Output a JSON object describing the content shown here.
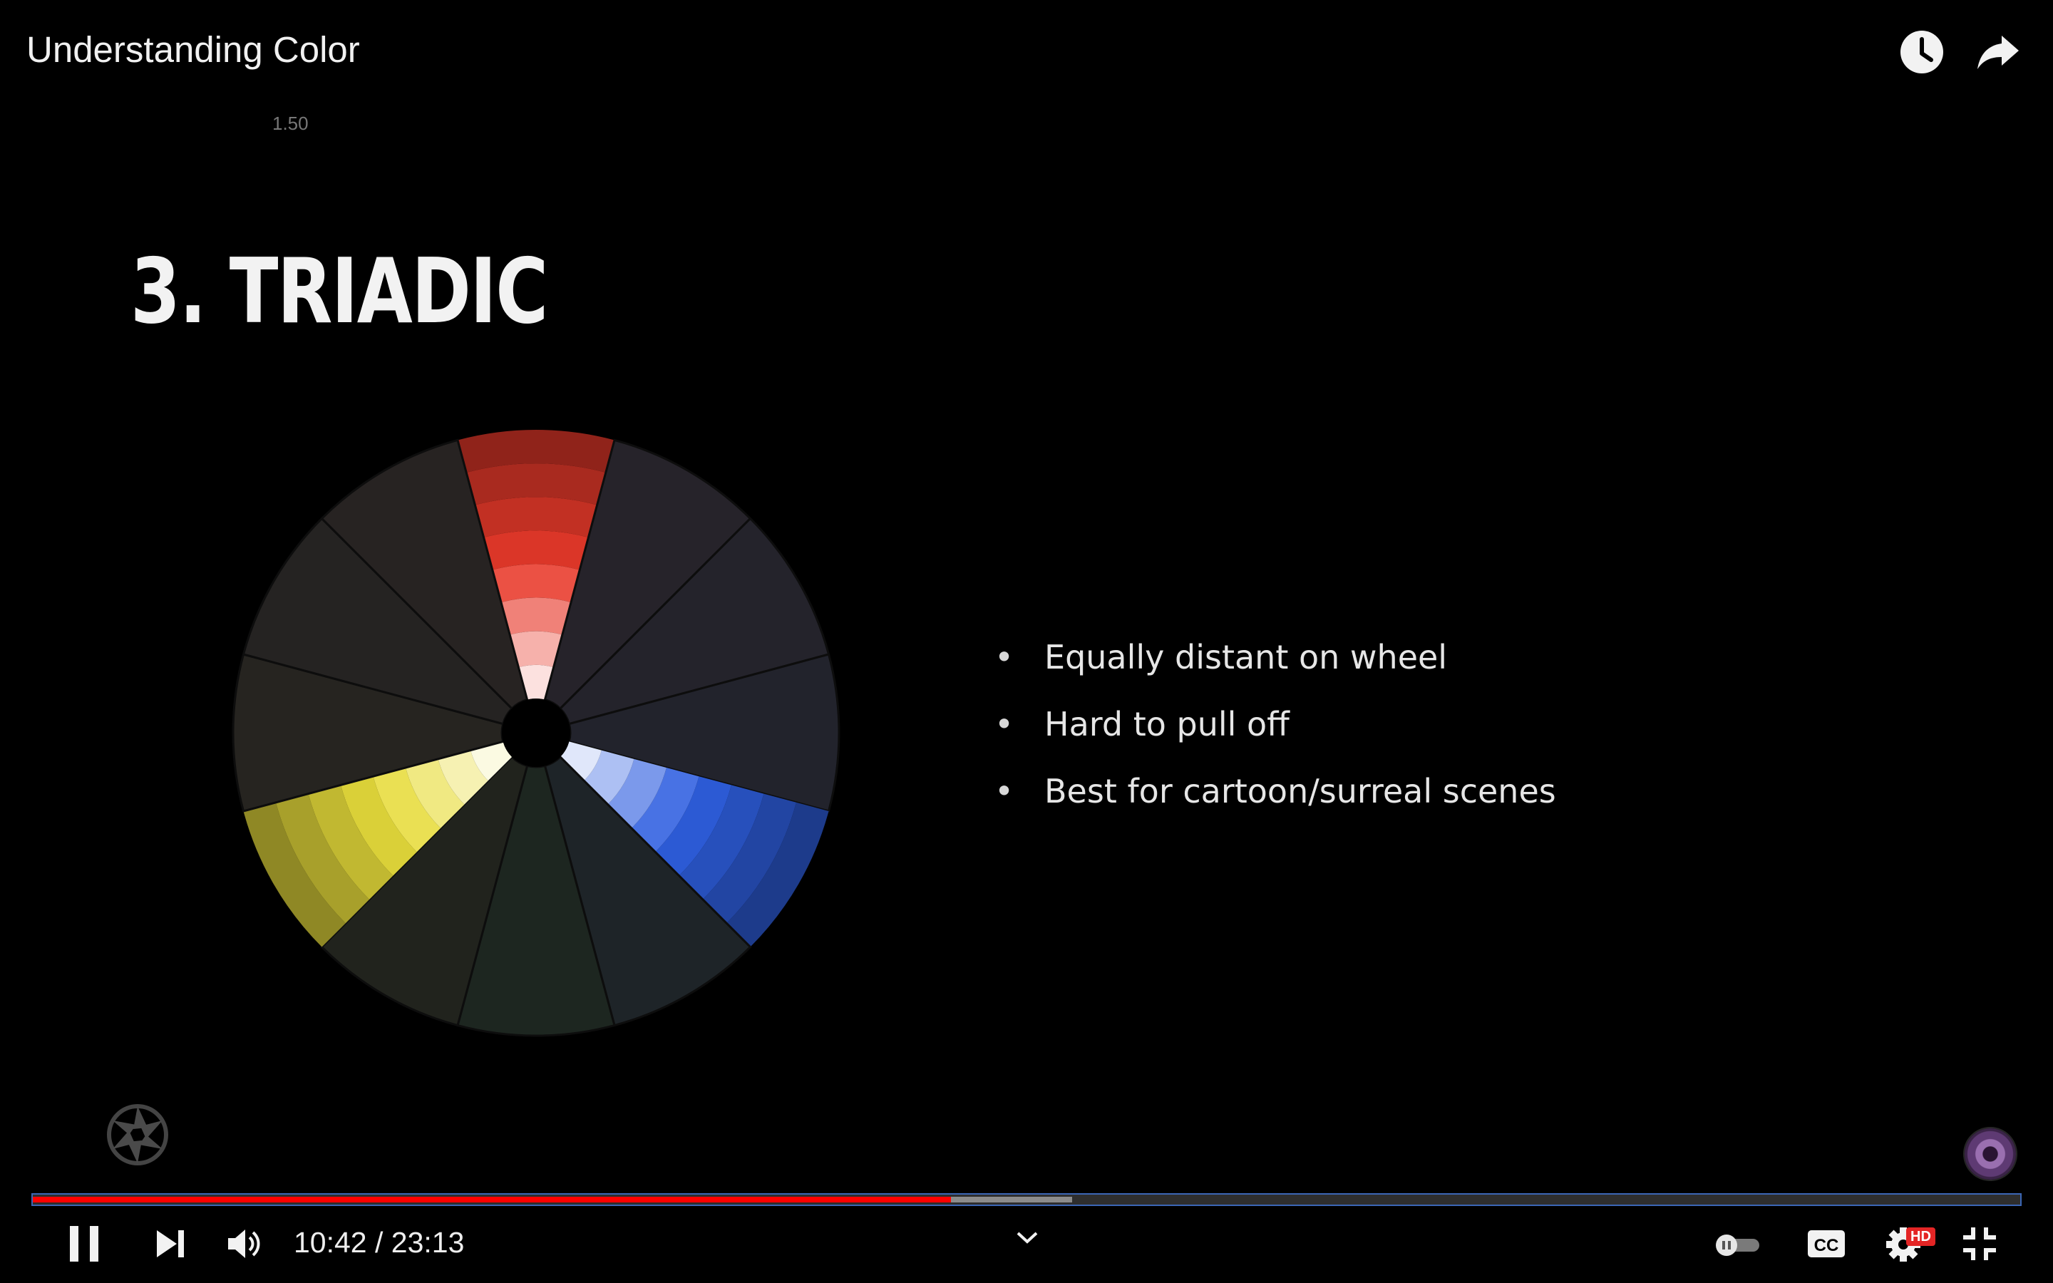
{
  "video": {
    "title": "Understanding Color",
    "playback_speed": "1.50"
  },
  "slide": {
    "title": "3. TRIADIC",
    "bullets": [
      "Equally distant on wheel",
      "Hard to pull off",
      "Best for cartoon/surreal scenes"
    ],
    "wheel_highlighted_segments": [
      {
        "name": "red",
        "color": "#e8392a"
      },
      {
        "name": "blue",
        "color": "#2f5fe0"
      },
      {
        "name": "yellow",
        "color": "#e7dc3b"
      }
    ]
  },
  "player": {
    "current_time": "10:42",
    "separator": " / ",
    "duration": "23:13",
    "progress_played": 0.462,
    "progress_buffered": 0.523,
    "accent_color": "#ff0000",
    "icons": {
      "watch_later": "clock-icon",
      "share": "share-arrow-icon",
      "play_pause": "pause-icon",
      "next": "next-icon",
      "volume": "volume-icon",
      "chapters": "chevron-down-icon",
      "autoplay": "autoplay-toggle-icon",
      "captions": "cc-icon",
      "settings": "gear-icon",
      "fullscreen": "exit-fullscreen-icon"
    },
    "settings_badge": "HD"
  }
}
